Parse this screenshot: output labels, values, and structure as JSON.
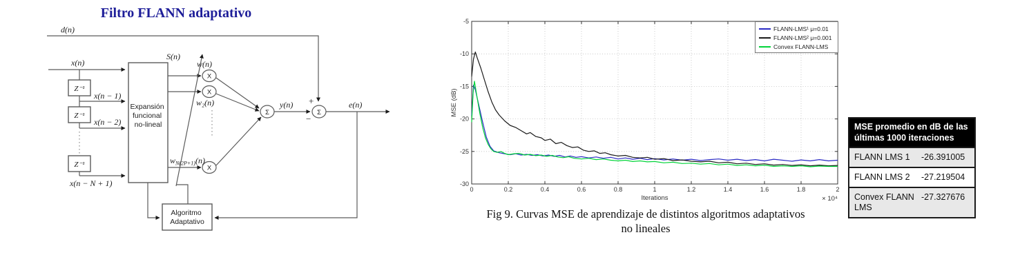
{
  "diagram": {
    "title": "Filtro FLANN adaptativo",
    "labels": {
      "d": "d(n)",
      "x": "x(n)",
      "x1": "x(n − 1)",
      "x2": "x(n − 2)",
      "xN": "x(n − N + 1)",
      "S": "S(n)",
      "w1": "w(n)",
      "w2": "w₂(n)",
      "wlast_base": "w",
      "wlast_sub": "N(2P+1)",
      "wlast_rest": "(n)",
      "y": "y(n)",
      "e": "e(n)",
      "z_delay": "Z⁻¹",
      "multiplier": "X",
      "summer": "Σ",
      "plus": "+",
      "minus": "−",
      "expansion_box": [
        "Expansión",
        "funcional",
        "no-lineal"
      ],
      "algorithm_box": [
        "Algoritmo",
        "Adaptativo"
      ]
    }
  },
  "chart_data": {
    "type": "line",
    "title": "",
    "xlabel": "Iterations",
    "ylabel": "MSE (dB)",
    "x_multiplier": "× 10⁴",
    "xlim": [
      0,
      2
    ],
    "ylim": [
      -30,
      -5
    ],
    "xticks": [
      0,
      0.2,
      0.4,
      0.6,
      0.8,
      1,
      1.2,
      1.4,
      1.6,
      1.8,
      2
    ],
    "xtick_labels": [
      "0",
      "0.2",
      "0.4",
      "0.6",
      "0.8",
      "1",
      "1.2",
      "1.4",
      "1.6",
      "1.8",
      "2"
    ],
    "yticks": [
      -5,
      -10,
      -15,
      -20,
      -25,
      -30
    ],
    "ytick_labels": [
      "-5",
      "-10",
      "-15",
      "-20",
      "-25",
      "-30"
    ],
    "grid": "dotted",
    "legend_position": "top-right",
    "series": [
      {
        "name": "FLANN-LMS¹ μ=0.01",
        "color": "#2a2ac4",
        "points": [
          [
            0,
            -19.5
          ],
          [
            0.01,
            -14.8
          ],
          [
            0.02,
            -15.5
          ],
          [
            0.04,
            -18.0
          ],
          [
            0.06,
            -20.5
          ],
          [
            0.08,
            -22.8
          ],
          [
            0.1,
            -24.2
          ],
          [
            0.12,
            -24.9
          ],
          [
            0.15,
            -25.2
          ],
          [
            0.18,
            -25.35
          ],
          [
            0.21,
            -25.5
          ],
          [
            0.24,
            -25.35
          ],
          [
            0.27,
            -25.55
          ],
          [
            0.3,
            -25.45
          ],
          [
            0.33,
            -25.6
          ],
          [
            0.36,
            -25.5
          ],
          [
            0.39,
            -25.7
          ],
          [
            0.42,
            -25.55
          ],
          [
            0.45,
            -25.75
          ],
          [
            0.48,
            -25.6
          ],
          [
            0.51,
            -25.85
          ],
          [
            0.54,
            -25.7
          ],
          [
            0.57,
            -25.9
          ],
          [
            0.6,
            -25.8
          ],
          [
            0.64,
            -26.0
          ],
          [
            0.68,
            -25.85
          ],
          [
            0.72,
            -26.05
          ],
          [
            0.76,
            -25.9
          ],
          [
            0.8,
            -26.15
          ],
          [
            0.84,
            -26.0
          ],
          [
            0.88,
            -26.2
          ],
          [
            0.92,
            -26.05
          ],
          [
            0.96,
            -26.25
          ],
          [
            1.0,
            -26.1
          ],
          [
            1.05,
            -26.3
          ],
          [
            1.1,
            -26.15
          ],
          [
            1.15,
            -26.35
          ],
          [
            1.2,
            -26.2
          ],
          [
            1.25,
            -26.4
          ],
          [
            1.3,
            -26.25
          ],
          [
            1.35,
            -26.15
          ],
          [
            1.4,
            -26.35
          ],
          [
            1.45,
            -26.2
          ],
          [
            1.5,
            -26.4
          ],
          [
            1.55,
            -26.25
          ],
          [
            1.6,
            -26.45
          ],
          [
            1.65,
            -26.2
          ],
          [
            1.7,
            -26.35
          ],
          [
            1.75,
            -26.5
          ],
          [
            1.8,
            -26.3
          ],
          [
            1.85,
            -26.45
          ],
          [
            1.9,
            -26.25
          ],
          [
            1.95,
            -26.45
          ],
          [
            2.0,
            -26.35
          ]
        ]
      },
      {
        "name": "FLANN-LMS² μ=0.001",
        "color": "#1a1a1a",
        "points": [
          [
            0,
            -13.5
          ],
          [
            0.01,
            -10.8
          ],
          [
            0.02,
            -9.7
          ],
          [
            0.03,
            -10.6
          ],
          [
            0.05,
            -12.2
          ],
          [
            0.07,
            -14.0
          ],
          [
            0.09,
            -15.8
          ],
          [
            0.11,
            -17.4
          ],
          [
            0.13,
            -18.6
          ],
          [
            0.15,
            -19.4
          ],
          [
            0.18,
            -20.3
          ],
          [
            0.21,
            -21.0
          ],
          [
            0.24,
            -21.3
          ],
          [
            0.27,
            -21.8
          ],
          [
            0.3,
            -22.3
          ],
          [
            0.32,
            -22.1
          ],
          [
            0.35,
            -22.7
          ],
          [
            0.38,
            -22.9
          ],
          [
            0.4,
            -23.3
          ],
          [
            0.43,
            -23.1
          ],
          [
            0.46,
            -23.8
          ],
          [
            0.49,
            -23.6
          ],
          [
            0.52,
            -24.1
          ],
          [
            0.55,
            -24.4
          ],
          [
            0.58,
            -24.3
          ],
          [
            0.61,
            -24.8
          ],
          [
            0.64,
            -25.0
          ],
          [
            0.67,
            -24.9
          ],
          [
            0.7,
            -25.3
          ],
          [
            0.73,
            -25.2
          ],
          [
            0.76,
            -25.5
          ],
          [
            0.8,
            -25.7
          ],
          [
            0.84,
            -25.6
          ],
          [
            0.88,
            -25.9
          ],
          [
            0.92,
            -26.0
          ],
          [
            0.96,
            -25.9
          ],
          [
            1.0,
            -26.2
          ],
          [
            1.05,
            -26.1
          ],
          [
            1.1,
            -26.4
          ],
          [
            1.15,
            -26.3
          ],
          [
            1.2,
            -26.5
          ],
          [
            1.25,
            -26.6
          ],
          [
            1.3,
            -26.5
          ],
          [
            1.35,
            -26.75
          ],
          [
            1.4,
            -26.65
          ],
          [
            1.45,
            -26.9
          ],
          [
            1.5,
            -26.8
          ],
          [
            1.55,
            -27.0
          ],
          [
            1.6,
            -26.9
          ],
          [
            1.65,
            -27.1
          ],
          [
            1.7,
            -27.0
          ],
          [
            1.75,
            -27.15
          ],
          [
            1.8,
            -27.05
          ],
          [
            1.85,
            -27.2
          ],
          [
            1.9,
            -27.1
          ],
          [
            1.95,
            -27.2
          ],
          [
            2.0,
            -27.15
          ]
        ]
      },
      {
        "name": "Convex FLANN-LMS",
        "color": "#00d338",
        "points": [
          [
            0,
            -20.5
          ],
          [
            0.008,
            -16.0
          ],
          [
            0.015,
            -14.2
          ],
          [
            0.03,
            -16.8
          ],
          [
            0.045,
            -19.2
          ],
          [
            0.06,
            -21.3
          ],
          [
            0.075,
            -22.9
          ],
          [
            0.09,
            -23.9
          ],
          [
            0.105,
            -24.6
          ],
          [
            0.12,
            -25.0
          ],
          [
            0.14,
            -25.15
          ],
          [
            0.16,
            -25.0
          ],
          [
            0.18,
            -25.3
          ],
          [
            0.2,
            -25.5
          ],
          [
            0.23,
            -25.35
          ],
          [
            0.26,
            -25.3
          ],
          [
            0.29,
            -25.55
          ],
          [
            0.32,
            -25.45
          ],
          [
            0.35,
            -25.65
          ],
          [
            0.38,
            -25.55
          ],
          [
            0.41,
            -25.75
          ],
          [
            0.44,
            -25.6
          ],
          [
            0.47,
            -25.85
          ],
          [
            0.5,
            -25.95
          ],
          [
            0.53,
            -25.8
          ],
          [
            0.56,
            -26.05
          ],
          [
            0.6,
            -26.15
          ],
          [
            0.64,
            -26.05
          ],
          [
            0.68,
            -26.25
          ],
          [
            0.72,
            -26.15
          ],
          [
            0.76,
            -26.35
          ],
          [
            0.8,
            -26.45
          ],
          [
            0.84,
            -26.35
          ],
          [
            0.88,
            -26.55
          ],
          [
            0.92,
            -26.45
          ],
          [
            0.96,
            -26.6
          ],
          [
            1.0,
            -26.55
          ],
          [
            1.05,
            -26.75
          ],
          [
            1.1,
            -26.65
          ],
          [
            1.15,
            -26.85
          ],
          [
            1.2,
            -26.8
          ],
          [
            1.25,
            -26.95
          ],
          [
            1.3,
            -26.85
          ],
          [
            1.35,
            -27.05
          ],
          [
            1.4,
            -26.95
          ],
          [
            1.45,
            -27.15
          ],
          [
            1.5,
            -27.05
          ],
          [
            1.55,
            -27.2
          ],
          [
            1.6,
            -27.1
          ],
          [
            1.65,
            -27.3
          ],
          [
            1.7,
            -27.2
          ],
          [
            1.75,
            -27.3
          ],
          [
            1.8,
            -27.2
          ],
          [
            1.85,
            -27.35
          ],
          [
            1.9,
            -27.25
          ],
          [
            1.95,
            -27.3
          ],
          [
            2.0,
            -27.3
          ]
        ]
      }
    ]
  },
  "caption": {
    "line1": "Fig 9. Curvas MSE de aprendizaje de distintos algoritmos adaptativos",
    "line2": "no lineales"
  },
  "table": {
    "header": "MSE promedio en dB de las últimas 1000 iteraciones",
    "rows": [
      {
        "label": "FLANN LMS 1",
        "value": "-26.391005"
      },
      {
        "label": "FLANN LMS 2",
        "value": "-27.219504"
      },
      {
        "label": "Convex FLANN LMS",
        "value": "-27.327676"
      }
    ]
  }
}
